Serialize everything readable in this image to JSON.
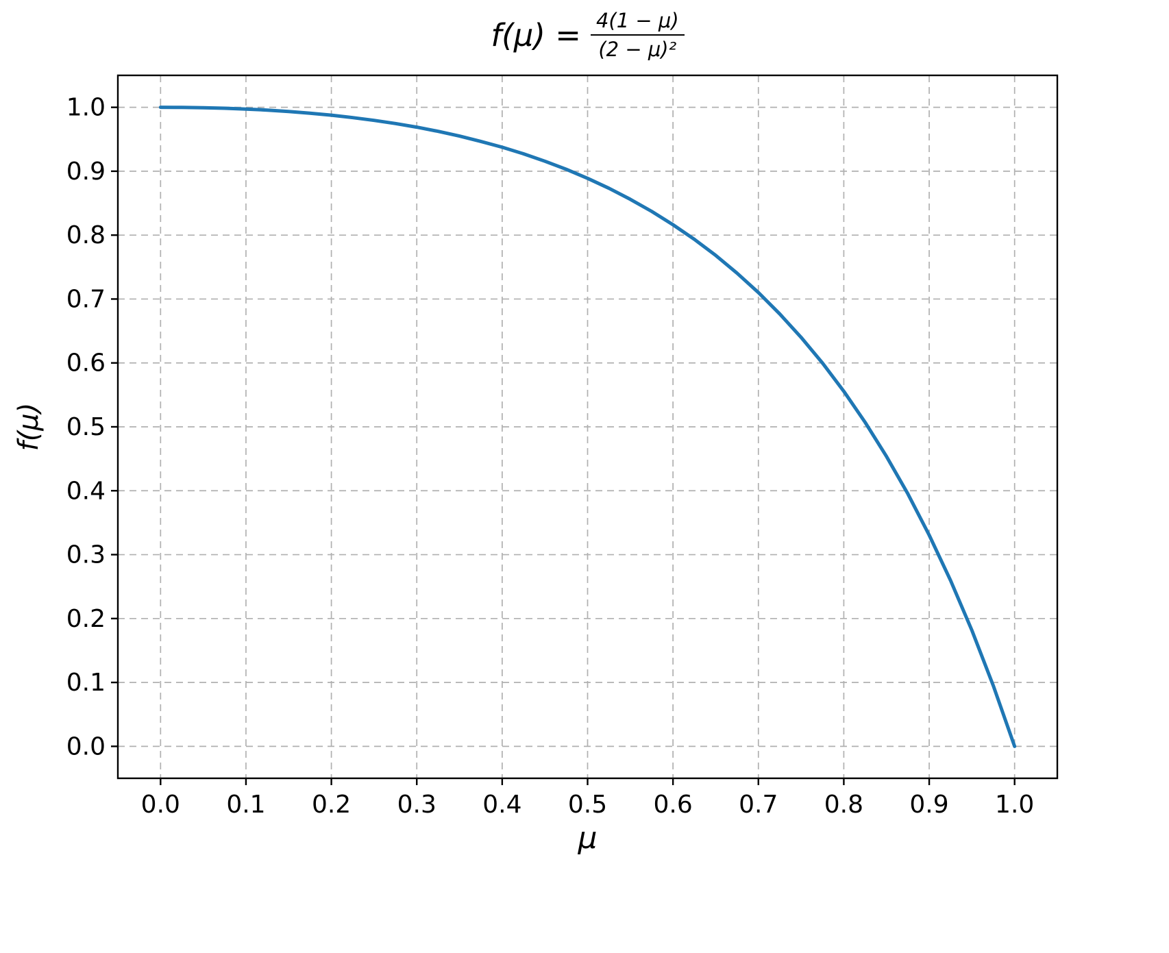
{
  "title": {
    "prefix": "f(μ) =",
    "numerator": "4(1 − μ)",
    "denominator": "(2 − μ)²"
  },
  "axes": {
    "xlabel": "μ",
    "ylabel": "f(μ)"
  },
  "chart_data": {
    "type": "line",
    "title": "f(μ) = 4(1 − μ) / (2 − μ)²",
    "xlabel": "μ",
    "ylabel": "f(μ)",
    "xlim": [
      -0.05,
      1.05
    ],
    "ylim": [
      -0.05,
      1.05
    ],
    "grid": true,
    "grid_style": "dashed",
    "legend": "none",
    "line_color": "#1f77b4",
    "grid_color": "#b0b0b0",
    "spine_color": "#000000",
    "xticks": {
      "values": [
        0,
        0.1,
        0.2,
        0.3,
        0.4,
        0.5,
        0.6,
        0.7,
        0.8,
        0.9,
        1.0
      ],
      "labels": [
        "0.0",
        "0.1",
        "0.2",
        "0.3",
        "0.4",
        "0.5",
        "0.6",
        "0.7",
        "0.8",
        "0.9",
        "1.0"
      ]
    },
    "yticks": {
      "values": [
        0,
        0.1,
        0.2,
        0.3,
        0.4,
        0.5,
        0.6,
        0.7,
        0.8,
        0.9,
        1.0
      ],
      "labels": [
        "0.0",
        "0.1",
        "0.2",
        "0.3",
        "0.4",
        "0.5",
        "0.6",
        "0.7",
        "0.8",
        "0.9",
        "1.0"
      ]
    },
    "series": [
      {
        "name": "f(μ) = 4(1−μ)/(2−μ)²",
        "x": [
          0,
          0.025,
          0.05,
          0.075,
          0.1,
          0.125,
          0.15,
          0.175,
          0.2,
          0.225,
          0.25,
          0.275,
          0.3,
          0.325,
          0.35,
          0.375,
          0.4,
          0.425,
          0.45,
          0.475,
          0.5,
          0.525,
          0.55,
          0.575,
          0.6,
          0.625,
          0.65,
          0.675,
          0.7,
          0.725,
          0.75,
          0.775,
          0.8,
          0.825,
          0.85,
          0.875,
          0.9,
          0.925,
          0.95,
          0.975,
          1.0
        ],
        "y": [
          1.0,
          0.9998,
          0.9993,
          0.9985,
          0.9972,
          0.9956,
          0.9934,
          0.9908,
          0.9877,
          0.9839,
          0.9796,
          0.9746,
          0.9689,
          0.9624,
          0.955,
          0.9467,
          0.9375,
          0.9272,
          0.9157,
          0.903,
          0.8889,
          0.8733,
          0.8561,
          0.8372,
          0.8163,
          0.7934,
          0.7682,
          0.7405,
          0.7101,
          0.6767,
          0.64,
          0.5998,
          0.5556,
          0.507,
          0.4537,
          0.3951,
          0.3306,
          0.2596,
          0.1814,
          0.0952,
          0.0
        ]
      }
    ]
  }
}
